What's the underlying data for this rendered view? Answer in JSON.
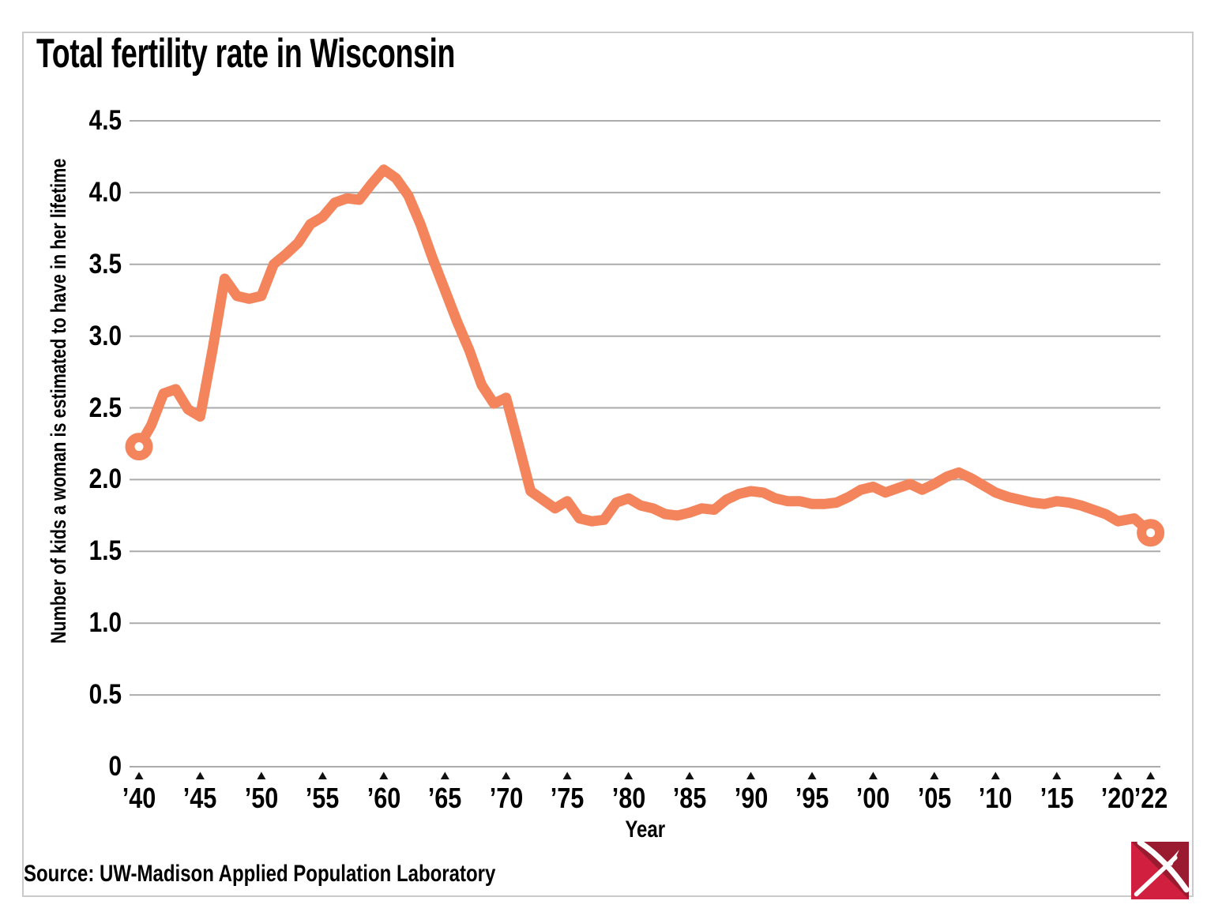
{
  "header": {
    "title": "Total fertility rate in Wisconsin"
  },
  "footer": {
    "source": "Source: UW-Madison Applied Population Laboratory",
    "logo": "red-pickaxe-logo"
  },
  "colors": {
    "line": "#f4845c",
    "grid": "#ababab",
    "tick_marker": "#111111",
    "frame_border": "#cacaca",
    "logo_bright_red": "#d11f3f",
    "logo_dark_red": "#9a1b2f"
  },
  "chart_data": {
    "type": "line",
    "title": "Total fertility rate in Wisconsin",
    "xlabel": "Year",
    "ylabel": "Number of kids a woman is estimated to have in her lifetime",
    "ylim": [
      0,
      4.5
    ],
    "xlim": [
      1940,
      2022
    ],
    "grid": "horizontal",
    "legend": "none",
    "line_color": "#f4845c",
    "marker": "open-circle-at-first-and-last-point",
    "y_ticks": [
      4.5,
      4.0,
      3.5,
      3.0,
      2.5,
      2.0,
      1.5,
      1.0,
      0.5,
      0
    ],
    "y_tick_labels": [
      "4.5",
      "4.0",
      "3.5",
      "3.0",
      "2.5",
      "2.0",
      "1.5",
      "1.0",
      "0.5",
      "0"
    ],
    "x_ticks": [
      1940,
      1945,
      1950,
      1955,
      1960,
      1965,
      1970,
      1975,
      1980,
      1985,
      1990,
      1995,
      2000,
      2005,
      2010,
      2015,
      2020,
      2022
    ],
    "x_tick_labels": [
      "’40",
      "’45",
      "’50",
      "’55",
      "’60",
      "’65",
      "’70",
      "’75",
      "’80",
      "’85",
      "’90",
      "’95",
      "’00",
      "’05",
      "’10",
      "’15",
      "’20",
      "’22"
    ],
    "x": [
      1940,
      1941,
      1942,
      1943,
      1944,
      1945,
      1946,
      1947,
      1948,
      1949,
      1950,
      1951,
      1952,
      1953,
      1954,
      1955,
      1956,
      1957,
      1958,
      1959,
      1960,
      1961,
      1962,
      1963,
      1964,
      1965,
      1966,
      1967,
      1968,
      1969,
      1970,
      1971,
      1972,
      1973,
      1974,
      1975,
      1976,
      1977,
      1978,
      1979,
      1980,
      1981,
      1982,
      1983,
      1984,
      1985,
      1986,
      1987,
      1988,
      1989,
      1990,
      1991,
      1992,
      1993,
      1994,
      1995,
      1996,
      1997,
      1998,
      1999,
      2000,
      2001,
      2002,
      2003,
      2004,
      2005,
      2006,
      2007,
      2008,
      2009,
      2010,
      2011,
      2012,
      2013,
      2014,
      2015,
      2016,
      2017,
      2018,
      2019,
      2020,
      2021,
      2022
    ],
    "values": [
      2.23,
      2.38,
      2.6,
      2.63,
      2.49,
      2.44,
      2.9,
      3.4,
      3.28,
      3.26,
      3.28,
      3.5,
      3.57,
      3.65,
      3.78,
      3.83,
      3.93,
      3.96,
      3.95,
      4.06,
      4.16,
      4.1,
      3.98,
      3.78,
      3.54,
      3.32,
      3.1,
      2.9,
      2.66,
      2.53,
      2.57,
      2.25,
      1.92,
      1.86,
      1.8,
      1.85,
      1.73,
      1.71,
      1.72,
      1.84,
      1.87,
      1.82,
      1.8,
      1.76,
      1.75,
      1.77,
      1.8,
      1.79,
      1.86,
      1.9,
      1.92,
      1.91,
      1.87,
      1.85,
      1.85,
      1.83,
      1.83,
      1.84,
      1.88,
      1.93,
      1.95,
      1.91,
      1.94,
      1.97,
      1.93,
      1.97,
      2.02,
      2.05,
      2.01,
      1.96,
      1.91,
      1.88,
      1.86,
      1.84,
      1.83,
      1.85,
      1.84,
      1.82,
      1.79,
      1.76,
      1.71,
      1.73,
      1.63
    ]
  }
}
